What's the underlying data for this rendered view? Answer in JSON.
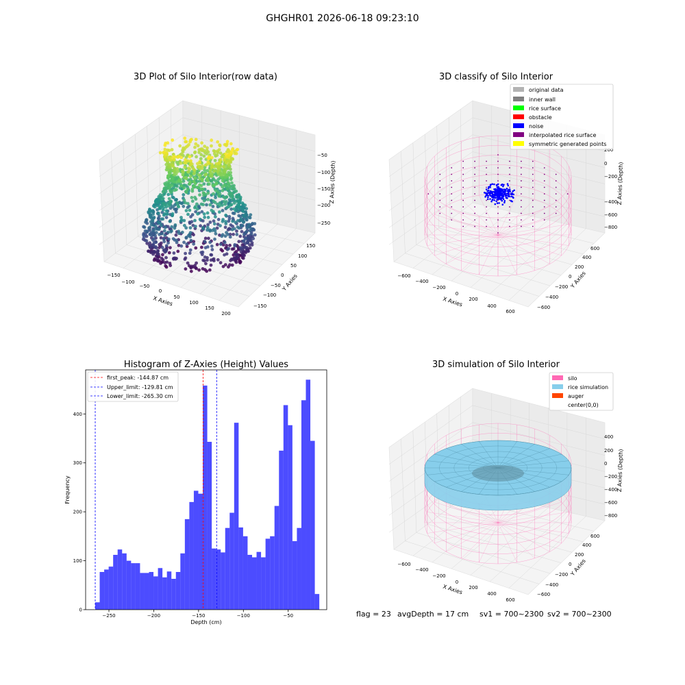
{
  "suptitle": "GHGHR01 2026-06-18 09:23:10",
  "footer": {
    "flag": "flag = 23",
    "avg": "avgDepth = 17 cm",
    "sv1": "sv1 = 700~2300",
    "sv2": "sv2 = 700~2300"
  },
  "panels": {
    "raw": {
      "title": "3D Plot of Silo Interior(row data)",
      "xlabel": "X Axies",
      "ylabel": "Y Axies",
      "zlabel": "Z Axies (Depth)",
      "xticks": [
        "−150",
        "−100",
        "−50",
        "0",
        "50",
        "100",
        "150",
        "200"
      ],
      "yticks": [
        "−150",
        "−100",
        "−50",
        "0",
        "50",
        "100",
        "150"
      ],
      "zticks": [
        "−50",
        "−100",
        "−150",
        "−200",
        "−250"
      ]
    },
    "classify": {
      "title": "3D classify of Silo Interior",
      "xlabel": "X Axies",
      "ylabel": "Y Axies",
      "zlabel": "Z Axies (Depth)",
      "xticks": [
        "−600",
        "−400",
        "−200",
        "0",
        "200",
        "400",
        "600"
      ],
      "yticks": [
        "−600",
        "−400",
        "−200",
        "0",
        "200",
        "400",
        "600"
      ],
      "zticks": [
        "200",
        "0",
        "−200",
        "−400",
        "−600",
        "−800"
      ],
      "legend": [
        {
          "label": "original data",
          "color": "#b3b3b3"
        },
        {
          "label": "inner wall",
          "color": "#808080"
        },
        {
          "label": "rice surface",
          "color": "#00ff00"
        },
        {
          "label": "obstacle",
          "color": "#ff0000"
        },
        {
          "label": "noise",
          "color": "#0000ff"
        },
        {
          "label": "interpolated rice surface",
          "color": "#800080"
        },
        {
          "label": "symmetric generated points",
          "color": "#ffff00"
        }
      ]
    },
    "simulation": {
      "title": "3D simulation of Silo Interior",
      "xlabel": "X Axies",
      "ylabel": "Y Axies",
      "zlabel": "Z Axies (Depth)",
      "xticks": [
        "−600",
        "−400",
        "−200",
        "0",
        "200",
        "400",
        "600"
      ],
      "yticks": [
        "−600",
        "−400",
        "−200",
        "0",
        "200",
        "400",
        "600"
      ],
      "zticks": [
        "400",
        "200",
        "0",
        "−200",
        "−400",
        "−600",
        "−800"
      ],
      "legend": [
        {
          "label": "silo",
          "color": "#ff69b4"
        },
        {
          "label": "rice simulation",
          "color": "#87ceeb"
        },
        {
          "label": "auger",
          "color": "#ff4500"
        },
        {
          "label": "center(0,0)",
          "color": ""
        }
      ]
    }
  },
  "chart_data": {
    "type": "bar",
    "title": "Histogram of Z-Axies (Height) Values",
    "xlabel": "Depth (cm)",
    "ylabel": "Frequency",
    "xlim": [
      -276,
      -7
    ],
    "ylim": [
      0,
      490
    ],
    "xticks": [
      -250,
      -200,
      -150,
      -100,
      -50
    ],
    "xtick_labels": [
      "−250",
      "−200",
      "−150",
      "−100",
      "−50"
    ],
    "yticks": [
      0,
      100,
      200,
      300,
      400
    ],
    "bar_color": "#0000ff",
    "bin_start": -265.3,
    "bin_width": 5.0,
    "values": [
      15,
      77,
      82,
      88,
      112,
      123,
      115,
      100,
      95,
      95,
      75,
      75,
      77,
      68,
      85,
      66,
      78,
      63,
      77,
      115,
      185,
      220,
      243,
      237,
      458,
      343,
      125,
      123,
      117,
      167,
      198,
      382,
      168,
      150,
      112,
      107,
      118,
      107,
      145,
      150,
      212,
      325,
      418,
      377,
      140,
      167,
      428,
      470,
      345,
      32
    ],
    "lines": [
      {
        "label": "first_peak: -144.87 cm",
        "x": -144.87,
        "color": "#ff0000"
      },
      {
        "label": "Upper_limit: -129.81 cm",
        "x": -129.81,
        "color": "#0000ff"
      },
      {
        "label": "Lower_limit: -265.30 cm",
        "x": -265.3,
        "color": "#0000ff"
      }
    ],
    "legend_position": "upper-left"
  }
}
